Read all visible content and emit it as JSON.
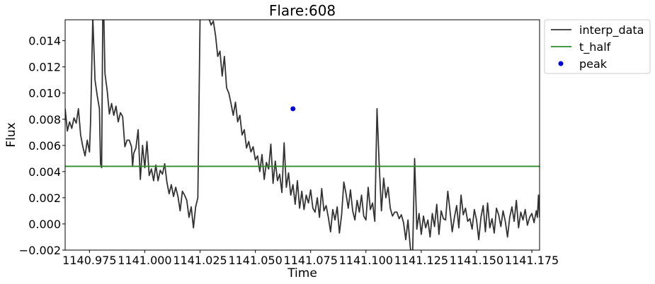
{
  "chart_data": {
    "type": "line",
    "title": "Flare:608",
    "xlabel": "Time",
    "ylabel": "Flux",
    "xlim": [
      1140.964,
      1141.1785
    ],
    "ylim": [
      -0.002,
      0.0156
    ],
    "xticks": [
      1140.975,
      1141.0,
      1141.025,
      1141.05,
      1141.075,
      1141.1,
      1141.125,
      1141.15,
      1141.175
    ],
    "xtick_labels": [
      "1140.975",
      "1141.000",
      "1141.025",
      "1141.050",
      "1141.075",
      "1141.100",
      "1141.125",
      "1141.150",
      "1141.175"
    ],
    "yticks": [
      -0.002,
      0.0,
      0.002,
      0.004,
      0.006,
      0.008,
      0.01,
      0.012,
      0.014
    ],
    "ytick_labels": [
      "−0.002",
      "0.000",
      "0.002",
      "0.004",
      "0.006",
      "0.008",
      "0.010",
      "0.012",
      "0.014"
    ],
    "grid": false,
    "legend_position": "outside-top-right",
    "series": [
      {
        "name": "interp_data",
        "kind": "line",
        "color": "#333333",
        "points": [
          [
            1140.964,
            0.0088
          ],
          [
            1140.965,
            0.0071
          ],
          [
            1140.966,
            0.0078
          ],
          [
            1140.967,
            0.0073
          ],
          [
            1140.968,
            0.0081
          ],
          [
            1140.969,
            0.0077
          ],
          [
            1140.97,
            0.0088
          ],
          [
            1140.971,
            0.0068
          ],
          [
            1140.972,
            0.0059
          ],
          [
            1140.973,
            0.0052
          ],
          [
            1140.974,
            0.0064
          ],
          [
            1140.975,
            0.0055
          ],
          [
            1140.9755,
            0.0078
          ],
          [
            1140.9765,
            0.0158
          ],
          [
            1140.9775,
            0.011
          ],
          [
            1140.9785,
            0.0098
          ],
          [
            1140.9795,
            0.0088
          ],
          [
            1140.98,
            0.0046
          ],
          [
            1140.9805,
            0.0043
          ],
          [
            1140.981,
            0.0158
          ],
          [
            1140.9815,
            0.0158
          ],
          [
            1140.982,
            0.0115
          ],
          [
            1140.983,
            0.0102
          ],
          [
            1140.984,
            0.0084
          ],
          [
            1140.985,
            0.0092
          ],
          [
            1140.986,
            0.0083
          ],
          [
            1140.987,
            0.009
          ],
          [
            1140.988,
            0.0078
          ],
          [
            1140.989,
            0.0085
          ],
          [
            1140.99,
            0.0082
          ],
          [
            1140.991,
            0.0059
          ],
          [
            1140.992,
            0.0064
          ],
          [
            1140.993,
            0.0064
          ],
          [
            1140.994,
            0.0059
          ],
          [
            1140.9945,
            0.0044
          ],
          [
            1140.995,
            0.0054
          ],
          [
            1140.996,
            0.0058
          ],
          [
            1140.997,
            0.0072
          ],
          [
            1140.998,
            0.0034
          ],
          [
            1140.999,
            0.006
          ],
          [
            1141.0,
            0.0043
          ],
          [
            1141.001,
            0.0063
          ],
          [
            1141.002,
            0.0037
          ],
          [
            1141.003,
            0.0042
          ],
          [
            1141.004,
            0.0033
          ],
          [
            1141.005,
            0.0045
          ],
          [
            1141.006,
            0.0033
          ],
          [
            1141.007,
            0.0041
          ],
          [
            1141.008,
            0.0038
          ],
          [
            1141.009,
            0.0046
          ],
          [
            1141.01,
            0.0032
          ],
          [
            1141.011,
            0.0023
          ],
          [
            1141.012,
            0.003
          ],
          [
            1141.013,
            0.0021
          ],
          [
            1141.014,
            0.0028
          ],
          [
            1141.015,
            0.0021
          ],
          [
            1141.016,
            0.001
          ],
          [
            1141.017,
            0.0025
          ],
          [
            1141.018,
            0.0022
          ],
          [
            1141.019,
            0.0018
          ],
          [
            1141.02,
            0.0005
          ],
          [
            1141.021,
            0.0013
          ],
          [
            1141.022,
            -0.0003
          ],
          [
            1141.023,
            0.0013
          ],
          [
            1141.024,
            0.002
          ],
          [
            1141.025,
            0.0158
          ],
          [
            1141.027,
            0.0158
          ],
          [
            1141.0285,
            0.0158
          ],
          [
            1141.029,
            0.0157
          ],
          [
            1141.03,
            0.0152
          ],
          [
            1141.031,
            0.0155
          ],
          [
            1141.032,
            0.0144
          ],
          [
            1141.033,
            0.0128
          ],
          [
            1141.034,
            0.0132
          ],
          [
            1141.035,
            0.0113
          ],
          [
            1141.036,
            0.0128
          ],
          [
            1141.037,
            0.0104
          ],
          [
            1141.038,
            0.01
          ],
          [
            1141.039,
            0.0092
          ],
          [
            1141.04,
            0.0083
          ],
          [
            1141.041,
            0.0093
          ],
          [
            1141.042,
            0.0078
          ],
          [
            1141.043,
            0.0083
          ],
          [
            1141.044,
            0.0068
          ],
          [
            1141.045,
            0.0072
          ],
          [
            1141.046,
            0.0058
          ],
          [
            1141.047,
            0.0063
          ],
          [
            1141.048,
            0.0055
          ],
          [
            1141.049,
            0.0059
          ],
          [
            1141.05,
            0.0049
          ],
          [
            1141.051,
            0.0052
          ],
          [
            1141.052,
            0.004
          ],
          [
            1141.053,
            0.0053
          ],
          [
            1141.054,
            0.0034
          ],
          [
            1141.055,
            0.0047
          ],
          [
            1141.056,
            0.0042
          ],
          [
            1141.057,
            0.0061
          ],
          [
            1141.058,
            0.0031
          ],
          [
            1141.059,
            0.0048
          ],
          [
            1141.06,
            0.0033
          ],
          [
            1141.061,
            0.0038
          ],
          [
            1141.062,
            0.0024
          ],
          [
            1141.063,
            0.0062
          ],
          [
            1141.064,
            0.0028
          ],
          [
            1141.065,
            0.0039
          ],
          [
            1141.066,
            0.0022
          ],
          [
            1141.067,
            0.003
          ],
          [
            1141.068,
            0.0015
          ],
          [
            1141.069,
            0.0033
          ],
          [
            1141.07,
            0.0012
          ],
          [
            1141.071,
            0.0025
          ],
          [
            1141.072,
            0.0011
          ],
          [
            1141.073,
            0.0022
          ],
          [
            1141.074,
            0.0016
          ],
          [
            1141.075,
            0.0026
          ],
          [
            1141.076,
            0.0012
          ],
          [
            1141.077,
            0.0009
          ],
          [
            1141.078,
            0.002
          ],
          [
            1141.079,
            0.0005
          ],
          [
            1141.08,
            0.0027
          ],
          [
            1141.081,
            0.001
          ],
          [
            1141.082,
            0.0014
          ],
          [
            1141.083,
            0.0005
          ],
          [
            1141.084,
            -0.0006
          ],
          [
            1141.085,
            0.0011
          ],
          [
            1141.086,
            0.0003
          ],
          [
            1141.087,
            0.0013
          ],
          [
            1141.088,
            -0.0007
          ],
          [
            1141.089,
            0.0007
          ],
          [
            1141.09,
            0.0032
          ],
          [
            1141.091,
            0.0023
          ],
          [
            1141.092,
            0.0012
          ],
          [
            1141.093,
            0.0026
          ],
          [
            1141.094,
            0.001
          ],
          [
            1141.095,
            0.0003
          ],
          [
            1141.096,
            0.0018
          ],
          [
            1141.097,
            0.0009
          ],
          [
            1141.098,
            0.0022
          ],
          [
            1141.099,
            0.0006
          ],
          [
            1141.1,
            0.0003
          ],
          [
            1141.101,
            0.0028
          ],
          [
            1141.102,
            0.0011
          ],
          [
            1141.103,
            0.0016
          ],
          [
            1141.104,
            0.0002
          ],
          [
            1141.105,
            0.0088
          ],
          [
            1141.106,
            0.0045
          ],
          [
            1141.107,
            0.001
          ],
          [
            1141.108,
            0.0035
          ],
          [
            1141.109,
            0.002
          ],
          [
            1141.11,
            0.0028
          ],
          [
            1141.111,
            0.0012
          ],
          [
            1141.112,
            0.0006
          ],
          [
            1141.113,
            0.0009
          ],
          [
            1141.114,
            0.0009
          ],
          [
            1141.115,
            0.0004
          ],
          [
            1141.116,
            0.0007
          ],
          [
            1141.117,
            0.0001
          ],
          [
            1141.118,
            -0.0012
          ],
          [
            1141.119,
            0.0003
          ],
          [
            1141.12,
            -0.0017
          ],
          [
            1141.121,
            -0.0031
          ],
          [
            1141.122,
            0.005
          ],
          [
            1141.123,
            -0.0004
          ],
          [
            1141.124,
            0.0008
          ],
          [
            1141.125,
            -0.0008
          ],
          [
            1141.126,
            0.0006
          ],
          [
            1141.127,
            -0.0003
          ],
          [
            1141.128,
            0.0003
          ],
          [
            1141.129,
            -0.001
          ],
          [
            1141.13,
            0.0008
          ],
          [
            1141.131,
            -0.0002
          ],
          [
            1141.132,
            0.0015
          ],
          [
            1141.133,
            -0.0008
          ],
          [
            1141.134,
            0.001
          ],
          [
            1141.135,
            0.0004
          ],
          [
            1141.136,
            0.0003
          ],
          [
            1141.137,
            0.0025
          ],
          [
            1141.138,
            0.001
          ],
          [
            1141.139,
            -0.0006
          ],
          [
            1141.14,
            0.0005
          ],
          [
            1141.141,
            0.0014
          ],
          [
            1141.142,
            -0.0003
          ],
          [
            1141.143,
            0.0022
          ],
          [
            1141.144,
            0.0007
          ],
          [
            1141.145,
            0.0012
          ],
          [
            1141.146,
            0.0002
          ],
          [
            1141.147,
            0.0004
          ],
          [
            1141.148,
            -0.0004
          ],
          [
            1141.149,
            0.0011
          ],
          [
            1141.15,
            0.0003
          ],
          [
            1141.151,
            -0.0012
          ],
          [
            1141.152,
            0.0005
          ],
          [
            1141.153,
            0.0014
          ],
          [
            1141.154,
            -0.0006
          ],
          [
            1141.155,
            0.0016
          ],
          [
            1141.156,
            -0.0003
          ],
          [
            1141.157,
            0.0004
          ],
          [
            1141.158,
            -0.0007
          ],
          [
            1141.159,
            0.0012
          ],
          [
            1141.16,
            0.0007
          ],
          [
            1141.161,
            -0.0002
          ],
          [
            1141.162,
            0.001
          ],
          [
            1141.163,
            0.0002
          ],
          [
            1141.164,
            -0.001
          ],
          [
            1141.165,
            0.0005
          ],
          [
            1141.166,
            0.0013
          ],
          [
            1141.167,
            0.0002
          ],
          [
            1141.168,
            0.0018
          ],
          [
            1141.169,
            -0.0003
          ],
          [
            1141.17,
            0.0009
          ],
          [
            1141.171,
            0.0003
          ],
          [
            1141.172,
            0.0011
          ],
          [
            1141.173,
            -0.0001
          ],
          [
            1141.174,
            0.0005
          ],
          [
            1141.175,
            0.0008
          ],
          [
            1141.176,
            0.0001
          ],
          [
            1141.177,
            0.001
          ],
          [
            1141.1775,
            0.0005
          ],
          [
            1141.178,
            0.0022
          ],
          [
            1141.1785,
            0.0005
          ]
        ]
      },
      {
        "name": "t_half",
        "kind": "hline",
        "color": "#2e8b2e",
        "y": 0.0044
      },
      {
        "name": "peak",
        "kind": "point",
        "color": "#0000dd",
        "x": 1141.067,
        "y": 0.0088
      }
    ]
  }
}
